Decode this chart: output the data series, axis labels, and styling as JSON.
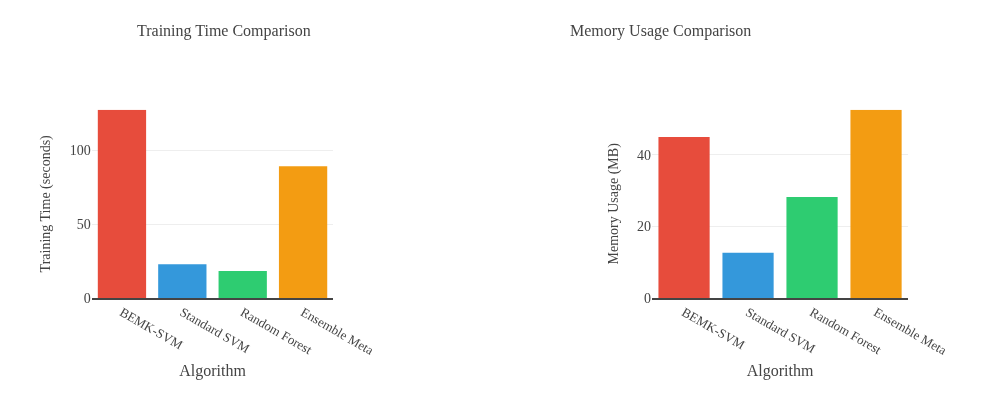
{
  "chart_data": [
    {
      "type": "bar",
      "title": "Training Time Comparison",
      "xlabel": "Algorithm",
      "ylabel": "Training Time (seconds)",
      "categories": [
        "BEMK-SVM",
        "Standard SVM",
        "Random Forest",
        "Ensemble Meta"
      ],
      "values": [
        127.4,
        22.8,
        18.2,
        89.2
      ],
      "colors": [
        "#e74c3c",
        "#3498db",
        "#2ecc71",
        "#f39c12"
      ],
      "ylim": [
        0,
        127.4
      ],
      "yticks": [
        0,
        50,
        100
      ],
      "grid": "y"
    },
    {
      "type": "bar",
      "title": "Memory Usage Comparison",
      "xlabel": "Algorithm",
      "ylabel": "Memory Usage (MB)",
      "categories": [
        "BEMK-SVM",
        "Standard SVM",
        "Random Forest",
        "Ensemble Meta"
      ],
      "values": [
        45.0,
        12.6,
        28.2,
        52.6
      ],
      "colors": [
        "#e74c3c",
        "#3498db",
        "#2ecc71",
        "#f39c12"
      ],
      "ylim": [
        0,
        52.6
      ],
      "yticks": [
        0,
        20,
        40
      ],
      "grid": "y"
    }
  ]
}
